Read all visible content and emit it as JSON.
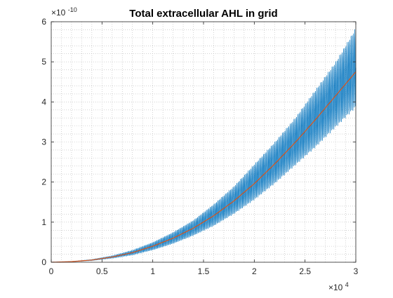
{
  "chart_data": {
    "type": "line",
    "title": "Total extracellular AHL in grid",
    "xlabel": "",
    "ylabel": "",
    "x_exponent_label": "×10",
    "x_exponent": "4",
    "y_exponent_label": "×10",
    "y_exponent": "-10",
    "xlim": [
      0,
      3
    ],
    "ylim": [
      0,
      6
    ],
    "xticks": [
      0,
      0.5,
      1,
      1.5,
      2,
      2.5,
      3
    ],
    "xtick_labels": [
      "0",
      "0.5",
      "1",
      "1.5",
      "2",
      "2.5",
      "3"
    ],
    "yticks": [
      0,
      1,
      2,
      3,
      4,
      5,
      6
    ],
    "ytick_labels": [
      "0",
      "1",
      "2",
      "3",
      "4",
      "5",
      "6"
    ],
    "grid": "minor dotted",
    "series": [
      {
        "color": "#0072BD",
        "style": "oscillating",
        "x": [
          0,
          0.2,
          0.4,
          0.6,
          0.8,
          1.0,
          1.2,
          1.4,
          1.6,
          1.8,
          2.0,
          2.2,
          2.4,
          2.6,
          2.8,
          3.0
        ],
        "upper": [
          0,
          0.02,
          0.07,
          0.16,
          0.3,
          0.5,
          0.75,
          1.05,
          1.45,
          1.9,
          2.45,
          3.0,
          3.6,
          4.3,
          5.0,
          5.85
        ],
        "lower": [
          0,
          0.01,
          0.04,
          0.1,
          0.18,
          0.3,
          0.46,
          0.66,
          0.9,
          1.2,
          1.55,
          1.95,
          2.4,
          2.85,
          3.35,
          3.85
        ]
      },
      {
        "color": "#D95319",
        "style": "mean",
        "x": [
          0,
          0.2,
          0.4,
          0.6,
          0.8,
          1.0,
          1.2,
          1.4,
          1.6,
          1.8,
          2.0,
          2.2,
          2.4,
          2.6,
          2.8,
          3.0
        ],
        "values": [
          0,
          0.015,
          0.055,
          0.13,
          0.24,
          0.4,
          0.6,
          0.85,
          1.16,
          1.53,
          1.96,
          2.45,
          2.98,
          3.55,
          4.15,
          4.75
        ]
      }
    ]
  }
}
